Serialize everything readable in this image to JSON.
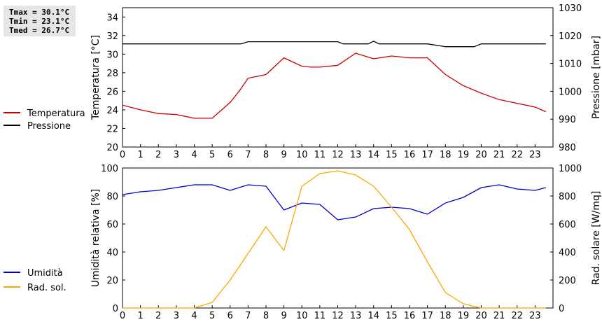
{
  "stats": {
    "tmax": "Tmax = 30.1°C",
    "tmin": "Tmin = 23.1°C",
    "tmed": "Tmed = 26.7°C"
  },
  "chart_data": [
    {
      "type": "line",
      "grid": false,
      "legend_placement": "left",
      "x_ticks": [
        "0",
        "1",
        "2",
        "3",
        "4",
        "5",
        "6",
        "7",
        "8",
        "9",
        "10",
        "11",
        "12",
        "13",
        "14",
        "15",
        "16",
        "17",
        "18",
        "19",
        "20",
        "21",
        "22",
        "23"
      ],
      "xlim": [
        0,
        24
      ],
      "y_left": {
        "label": "Temperatura [°C]",
        "lim": [
          20,
          35
        ],
        "ticks": [
          "20",
          "22",
          "24",
          "26",
          "28",
          "30",
          "32",
          "34"
        ]
      },
      "y_right": {
        "label": "Pressione [mbar]",
        "lim": [
          980,
          1030
        ],
        "ticks": [
          "980",
          "990",
          "1000",
          "1010",
          "1020",
          "1030"
        ]
      },
      "series": [
        {
          "name": "Temperatura",
          "axis": "left",
          "color": "#cc0000",
          "x": [
            0,
            1,
            2,
            3,
            4,
            5,
            6,
            6.5,
            7,
            8,
            9,
            10,
            10.5,
            11,
            12,
            13,
            14,
            15,
            16,
            17,
            18,
            19,
            20,
            21,
            22,
            23,
            23.6
          ],
          "y": [
            24.5,
            24.0,
            23.6,
            23.5,
            23.1,
            23.1,
            24.8,
            26.0,
            27.4,
            27.8,
            29.6,
            28.7,
            28.6,
            28.6,
            28.8,
            30.1,
            29.5,
            29.8,
            29.6,
            29.6,
            27.8,
            26.6,
            25.8,
            25.1,
            24.7,
            24.3,
            23.8
          ]
        },
        {
          "name": "Pressione",
          "axis": "right",
          "color": "#000000",
          "x": [
            0,
            6.6,
            7,
            11,
            12,
            12.3,
            13,
            13.7,
            14,
            14.3,
            15,
            17,
            18,
            19,
            19.6,
            20,
            21,
            22,
            23,
            23.6
          ],
          "y": [
            1017,
            1017,
            1017.8,
            1017.8,
            1017.8,
            1017,
            1017,
            1017,
            1018,
            1017,
            1017,
            1017,
            1016,
            1016,
            1016,
            1017,
            1017,
            1017,
            1017,
            1017
          ]
        }
      ]
    },
    {
      "type": "line",
      "grid": false,
      "legend_placement": "left",
      "x_ticks": [
        "0",
        "1",
        "2",
        "3",
        "4",
        "5",
        "6",
        "7",
        "8",
        "9",
        "10",
        "11",
        "12",
        "13",
        "14",
        "15",
        "16",
        "17",
        "18",
        "19",
        "20",
        "21",
        "22",
        "23"
      ],
      "xlim": [
        0,
        24
      ],
      "y_left": {
        "label": "Umidità relativa [%]",
        "lim": [
          0,
          100
        ],
        "ticks": [
          "0",
          "20",
          "40",
          "60",
          "80",
          "100"
        ]
      },
      "y_right": {
        "label": "Rad. solare [W/mq]",
        "lim": [
          0,
          1000
        ],
        "ticks": [
          "0",
          "200",
          "400",
          "600",
          "800",
          "1000"
        ]
      },
      "series": [
        {
          "name": "Umidità",
          "axis": "left",
          "color": "#0000cc",
          "x": [
            0,
            1,
            2,
            3,
            4,
            5,
            6,
            7,
            8,
            9,
            10,
            11,
            12,
            13,
            14,
            15,
            16,
            17,
            18,
            19,
            20,
            21,
            22,
            23,
            23.6
          ],
          "y": [
            81,
            83,
            84,
            86,
            88,
            88,
            84,
            88,
            87,
            70,
            75,
            74,
            63,
            65,
            71,
            72,
            71,
            67,
            75,
            79,
            86,
            88,
            85,
            84,
            86
          ]
        },
        {
          "name": "Rad. sol.",
          "axis": "right",
          "color": "#ffa500",
          "x": [
            0,
            1,
            2,
            3,
            4,
            5,
            6,
            7,
            8,
            9,
            10,
            11,
            12,
            13,
            14,
            15,
            16,
            17,
            18,
            19,
            20,
            21,
            22,
            23,
            23.6
          ],
          "y": [
            0,
            0,
            0,
            0,
            0,
            40,
            200,
            390,
            580,
            410,
            870,
            960,
            980,
            950,
            870,
            720,
            560,
            330,
            110,
            30,
            0,
            0,
            0,
            0,
            0
          ]
        }
      ]
    }
  ]
}
